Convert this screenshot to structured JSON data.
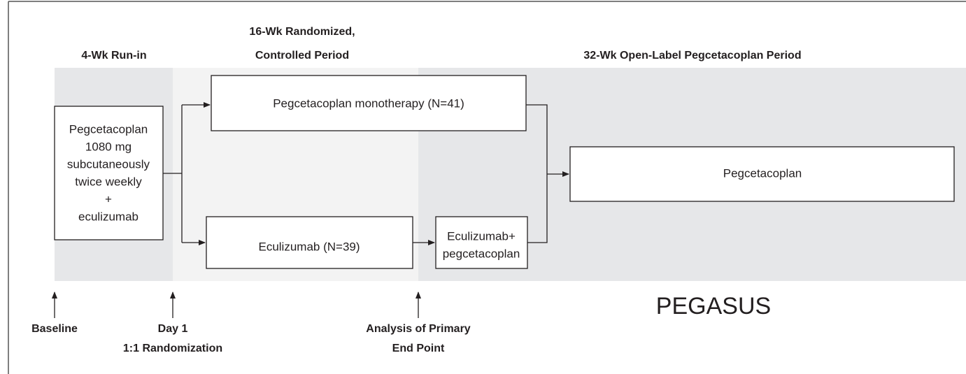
{
  "periods": {
    "run_in": "4-Wk Run-in",
    "randomized": [
      "16-Wk Randomized,",
      "Controlled Period"
    ],
    "open_label": "32-Wk Open-Label Pegcetacoplan Period"
  },
  "boxes": {
    "run_in": [
      "Pegcetacoplan",
      "1080 mg",
      "subcutaneously",
      "twice weekly",
      "+",
      "eculizumab"
    ],
    "monotherapy": "Pegcetacoplan monotherapy (N=41)",
    "eculizumab": "Eculizumab (N=39)",
    "combination": [
      "Eculizumab+",
      "pegcetacoplan"
    ],
    "pegcetacoplan": "Pegcetacoplan"
  },
  "milestones": {
    "baseline": [
      "Baseline"
    ],
    "day1": [
      "Day 1",
      "1:1 Randomization"
    ],
    "analysis": [
      "Analysis of Primary",
      "End Point"
    ]
  },
  "study_name": "PEGASUS"
}
